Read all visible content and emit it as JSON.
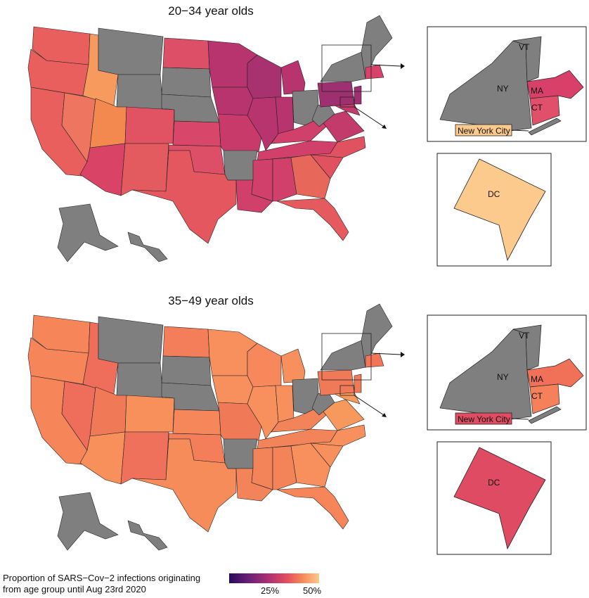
{
  "panels": [
    {
      "title": "20−34 year olds",
      "inset_labels": {
        "ny": "NY",
        "vt": "VT",
        "ma": "MA",
        "ct": "CT",
        "nyc": "New York City",
        "dc": "DC"
      },
      "colors": {
        "west": "#e85f5e",
        "idaho": "#f79a5e",
        "utah": "#f3894f",
        "nevada": "#ee7660",
        "arizona": "#d94366",
        "nm": "#e35a5f",
        "texas": "#e5575f",
        "colorado": "#e15363",
        "plains": "#dd4f66",
        "kansas": "#d8466a",
        "midwest": "#b8346f",
        "wisconsin": "#a83170",
        "missouri": "#c83a6a",
        "south": "#d0406a",
        "georgia": "#e8675b",
        "florida": "#e55a5f",
        "carolina": "#e0525f",
        "virginia": "#c23b6b",
        "pa": "#9e2f71",
        "ne": "#d8426a",
        "gray": "#7f7f7f",
        "nyc": "#fcc98c",
        "dc": "#fdca8d",
        "ma": "#d8406a",
        "ct": "#e0506a"
      }
    },
    {
      "title": "35−49 year olds",
      "inset_labels": {
        "ny": "NY",
        "vt": "VT",
        "ma": "MA",
        "ct": "CT",
        "nyc": "New York City",
        "dc": "DC"
      },
      "colors": {
        "west": "#f7855a",
        "idaho": "#ee6e5b",
        "utah": "#f07a58",
        "nevada": "#ee6e5b",
        "arizona": "#f7905a",
        "nm": "#ef715c",
        "texas": "#f78c5b",
        "colorado": "#f7905a",
        "plains": "#f47e59",
        "kansas": "#f6875a",
        "midwest": "#f7905c",
        "wisconsin": "#f6885b",
        "missouri": "#f07a58",
        "south": "#f3845a",
        "georgia": "#f7905c",
        "florida": "#f7855a",
        "carolina": "#f7905c",
        "virginia": "#f7985c",
        "pa": "#f07a58",
        "ne": "#f27558",
        "gray": "#7f7f7f",
        "nyc": "#e04d62",
        "dc": "#df4b62",
        "ma": "#f07058",
        "ct": "#f5805a"
      }
    }
  ],
  "legend": {
    "title_line1": "Proportion of SARS−Cov−2 infections originating",
    "title_line2": "from age group until Aug 23rd 2020",
    "tick_25": "25%",
    "tick_50": "50%"
  }
}
